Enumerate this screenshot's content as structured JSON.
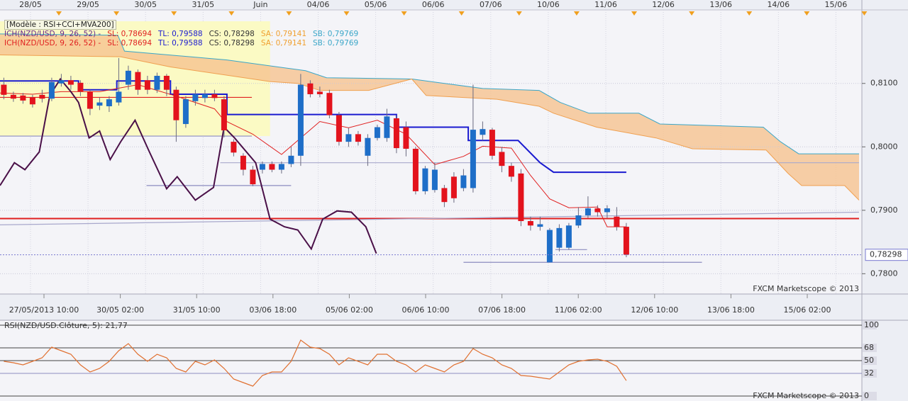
{
  "chart_data": [
    {
      "type": "candlestick",
      "legend": [
        [
          "[Modèle : RSI+CCI+MVA200]"
        ],
        [
          "ICH(NZD/USD, 9, 26, 52) -",
          "SL: 0,78694",
          "TL: 0,79588",
          "CS: 0,78298",
          "SA: 0,79141",
          "SB: 0,79769"
        ],
        [
          "ICH(NZD/USD, 9, 26, 52) -",
          "SL: 0,78694",
          "TL: 0,79588",
          "CS: 0,78298",
          "SA: 0,79141",
          "SB: 0,79769"
        ]
      ],
      "top_labels": [
        "28/05",
        "29/05",
        "30/05",
        "31/05",
        "Juin",
        "04/06",
        "05/06",
        "06/06",
        "07/06",
        "10/06",
        "11/06",
        "12/06",
        "13/06",
        "14/06",
        "15/06"
      ],
      "x_labels": [
        "27/05/2013 10:00",
        "30/05 02:00",
        "31/05 10:00",
        "03/06 18:00",
        "05/06 02:00",
        "06/06 10:00",
        "07/06 18:00",
        "11/06 02:00",
        "12/06 10:00",
        "13/06 18:00",
        "15/06 02:00"
      ],
      "watermark": "FXCM Marketscope © 2013",
      "xlim": [
        -0.4,
        89.6
      ],
      "ylim": [
        0.7768,
        0.8198
      ],
      "yticks": [
        {
          "value": 0.78,
          "label": "0,7800"
        },
        {
          "value": 0.79,
          "label": "0,7900"
        },
        {
          "value": 0.8,
          "label": "0,8000"
        },
        {
          "value": 0.81,
          "label": "0,8100"
        }
      ],
      "grid": true,
      "up_color": "#1e6ec8",
      "down_color": "#e3131d",
      "open": [
        0.8098,
        0.8082,
        0.8081,
        0.8078,
        0.8082,
        0.8076,
        0.81,
        0.8105,
        0.8101,
        0.8087,
        0.8065,
        0.8064,
        0.807,
        0.8098,
        0.8118,
        0.8105,
        0.809,
        0.8112,
        0.809,
        0.8036,
        0.8072,
        0.8077,
        0.8083,
        0.8075,
        0.8008,
        0.7986,
        0.7964,
        0.7964,
        0.7973,
        0.7964,
        0.7973,
        0.7986,
        0.81,
        0.8087,
        0.8085,
        0.805,
        0.8008,
        0.802,
        0.7986,
        0.8014,
        0.8014,
        0.8045,
        0.8031,
        0.7997,
        0.793,
        0.7932,
        0.7935,
        0.7953,
        0.7935,
        0.7935,
        0.8019,
        0.8027,
        0.7992,
        0.797,
        0.7958,
        0.7883,
        0.7874,
        0.7818,
        0.7841,
        0.7841,
        0.7876,
        0.7892,
        0.7903,
        0.7897,
        0.789,
        0.7874
      ],
      "high": [
        0.8109,
        0.8087,
        0.8085,
        0.8082,
        0.809,
        0.8109,
        0.8115,
        0.8112,
        0.8105,
        0.809,
        0.8078,
        0.808,
        0.814,
        0.8128,
        0.8122,
        0.8112,
        0.8117,
        0.8115,
        0.8095,
        0.808,
        0.809,
        0.809,
        0.809,
        0.808,
        0.8012,
        0.799,
        0.797,
        0.7977,
        0.7977,
        0.7977,
        0.8,
        0.8115,
        0.8105,
        0.8095,
        0.809,
        0.8055,
        0.803,
        0.8025,
        0.802,
        0.8035,
        0.806,
        0.805,
        0.804,
        0.8,
        0.797,
        0.7975,
        0.794,
        0.796,
        0.7965,
        0.8098,
        0.804,
        0.803,
        0.8,
        0.7975,
        0.7965,
        0.789,
        0.789,
        0.7872,
        0.7878,
        0.788,
        0.7905,
        0.7922,
        0.7908,
        0.7908,
        0.7905,
        0.788
      ],
      "low": [
        0.8075,
        0.8071,
        0.8068,
        0.8062,
        0.807,
        0.8072,
        0.8095,
        0.809,
        0.808,
        0.805,
        0.8058,
        0.8055,
        0.8065,
        0.809,
        0.8082,
        0.8083,
        0.8085,
        0.808,
        0.8008,
        0.803,
        0.8065,
        0.807,
        0.8072,
        0.8015,
        0.7985,
        0.7955,
        0.7938,
        0.7958,
        0.796,
        0.7958,
        0.7968,
        0.797,
        0.8078,
        0.8078,
        0.8045,
        0.8002,
        0.8,
        0.8002,
        0.797,
        0.801,
        0.8008,
        0.799,
        0.7985,
        0.7925,
        0.7925,
        0.7928,
        0.7905,
        0.7912,
        0.793,
        0.7928,
        0.801,
        0.798,
        0.796,
        0.7945,
        0.7875,
        0.7868,
        0.7868,
        0.7818,
        0.7835,
        0.7838,
        0.7872,
        0.7888,
        0.789,
        0.7888,
        0.7868,
        0.7826
      ],
      "close": [
        0.8082,
        0.8076,
        0.8073,
        0.8067,
        0.8076,
        0.8102,
        0.8105,
        0.8098,
        0.8087,
        0.806,
        0.807,
        0.8075,
        0.8087,
        0.812,
        0.809,
        0.809,
        0.8112,
        0.809,
        0.8042,
        0.8075,
        0.8083,
        0.8083,
        0.8077,
        0.8026,
        0.7991,
        0.7964,
        0.7941,
        0.7973,
        0.7964,
        0.7973,
        0.7986,
        0.8098,
        0.8083,
        0.8083,
        0.805,
        0.8008,
        0.802,
        0.8008,
        0.8014,
        0.8031,
        0.8048,
        0.7998,
        0.7997,
        0.793,
        0.7966,
        0.7964,
        0.7913,
        0.7919,
        0.7955,
        0.8027,
        0.8028,
        0.7986,
        0.797,
        0.7953,
        0.7883,
        0.7876,
        0.7878,
        0.7869,
        0.7872,
        0.7876,
        0.7892,
        0.7903,
        0.7897,
        0.7903,
        0.7874,
        0.783
      ],
      "cloud_color": "#f6c390",
      "series": [
        {
          "color": "#3aa6c8",
          "x": [
            -0.4,
            11.9,
            12.6,
            23.3,
            31.5,
            33.7,
            42.6,
            50.0,
            55.9,
            58.1,
            61.1,
            66.3,
            68.5,
            79.3,
            81.1,
            83.0,
            89.3
          ],
          "values": [
            0.8178,
            0.8176,
            0.8151,
            0.8137,
            0.812,
            0.8109,
            0.8107,
            0.8092,
            0.8089,
            0.807,
            0.8053,
            0.8053,
            0.8036,
            0.8031,
            0.8008,
            0.7989,
            0.7989
          ]
        },
        {
          "color": "#f0a050",
          "x": [
            -0.4,
            12.2,
            17.4,
            27.8,
            30.7,
            33.0,
            38.1,
            42.6,
            44.1,
            51.5,
            55.9,
            57.4,
            61.9,
            68.1,
            71.9,
            79.6,
            81.9,
            83.3,
            87.8,
            89.3
          ],
          "values": [
            0.8145,
            0.8142,
            0.8126,
            0.8103,
            0.81,
            0.8089,
            0.8089,
            0.8107,
            0.8081,
            0.8075,
            0.8064,
            0.8053,
            0.8031,
            0.8014,
            0.7997,
            0.7995,
            0.7958,
            0.7939,
            0.7939,
            0.7916
          ]
        },
        {
          "color": "#1a1ad0",
          "x": [
            -0.4,
            7.8,
            7.8,
            11.8,
            11.8,
            17.4,
            17.4,
            23.3,
            23.3,
            41,
            41,
            48.5,
            48.5,
            53.7,
            56,
            57.4,
            65
          ],
          "values": [
            0.8104,
            0.8104,
            0.809,
            0.809,
            0.8104,
            0.8104,
            0.8083,
            0.8083,
            0.8051,
            0.8051,
            0.8031,
            0.8031,
            0.801,
            0.801,
            0.7975,
            0.796,
            0.796
          ]
        },
        {
          "color": "#e02020",
          "x": [
            -0.4,
            3,
            6,
            10,
            14,
            18,
            22,
            23,
            26,
            29,
            31,
            33,
            36,
            39,
            42,
            45,
            48,
            50,
            53,
            55,
            57,
            59,
            62,
            63,
            65
          ],
          "values": [
            0.8085,
            0.8083,
            0.8087,
            0.8087,
            0.8098,
            0.808,
            0.806,
            0.8042,
            0.802,
            0.7988,
            0.8014,
            0.804,
            0.803,
            0.8042,
            0.802,
            0.7972,
            0.7985,
            0.8001,
            0.7998,
            0.7955,
            0.7918,
            0.7904,
            0.7905,
            0.7874,
            0.7874
          ]
        },
        {
          "color": "#4a1048",
          "x": [
            -0.4,
            1.1,
            2.2,
            3.7,
            4.8,
            5.9,
            7.0,
            7.8,
            8.9,
            10.0,
            11.1,
            12.2,
            13.7,
            15.2,
            17.0,
            18.1,
            20.0,
            21.9,
            23.0,
            24.1,
            26.3,
            27.8,
            29.3,
            30.7,
            32.1,
            33.3,
            34.8,
            36.3,
            37.8,
            38.9
          ],
          "values": [
            0.7939,
            0.7975,
            0.7964,
            0.7992,
            0.8081,
            0.8107,
            0.8087,
            0.807,
            0.8014,
            0.8025,
            0.798,
            0.8008,
            0.8042,
            0.7992,
            0.7934,
            0.7953,
            0.7916,
            0.7936,
            0.8031,
            0.8014,
            0.7975,
            0.7886,
            0.7874,
            0.7869,
            0.7839,
            0.7886,
            0.7899,
            0.7897,
            0.7874,
            0.7832
          ]
        }
      ],
      "highlight": {
        "x": [
          -0.4,
          27.8
        ],
        "y": [
          0.8017,
          0.8198
        ],
        "color": "#fbfac4"
      },
      "hlines": [
        {
          "value": 0.8078,
          "x": [
            -0.4,
            25.9
          ],
          "color": "#e02020"
        },
        {
          "value": 0.8017,
          "x": [
            -0.4,
            25.9
          ],
          "color": "#8c8cc0"
        },
        {
          "value": 0.7975,
          "x": [
            22.6,
            89.3
          ],
          "color": "#a8a8cc"
        },
        {
          "value": 0.7939,
          "x": [
            14.9,
            30.0
          ],
          "color": "#8c8cc0"
        },
        {
          "value": 0.7838,
          "x": [
            57.6,
            60.9
          ],
          "color": "#8c8cc0"
        },
        {
          "value": 0.7818,
          "x": [
            48.0,
            72.9
          ],
          "color": "#8c8cc0"
        },
        {
          "value": 0.7887,
          "x": [
            -0.4,
            89.3
          ],
          "color": "#e02020"
        }
      ],
      "trendlines": [
        {
          "x": [
            -0.4,
            89.3
          ],
          "values": [
            0.7877,
            0.7897
          ],
          "color": "#a8a8cc"
        }
      ],
      "last": {
        "value": 0.78298,
        "label": "0,78298"
      }
    },
    {
      "type": "line",
      "title": "RSI(NZD/USD.Clôture, 5): 21,77",
      "watermark": "FXCM Marketscope © 2013",
      "xlim": [
        -0.4,
        89.6
      ],
      "ylim": [
        0,
        100
      ],
      "yticks": [
        0,
        32,
        50,
        68,
        100
      ],
      "grid": true,
      "color": "#e07030",
      "values": [
        49,
        47,
        44,
        49,
        54,
        69,
        64,
        59,
        44,
        34,
        39,
        49,
        64,
        74,
        59,
        49,
        59,
        54,
        39,
        34,
        49,
        44,
        51,
        39,
        24,
        19,
        14,
        29,
        34,
        34,
        49,
        79,
        69,
        67,
        59,
        44,
        54,
        49,
        44,
        59,
        59,
        49,
        44,
        34,
        44,
        39,
        34,
        44,
        49,
        67,
        59,
        54,
        44,
        39,
        29,
        28,
        26,
        24,
        34,
        44,
        49,
        51,
        52,
        49,
        42,
        21.77
      ]
    }
  ]
}
